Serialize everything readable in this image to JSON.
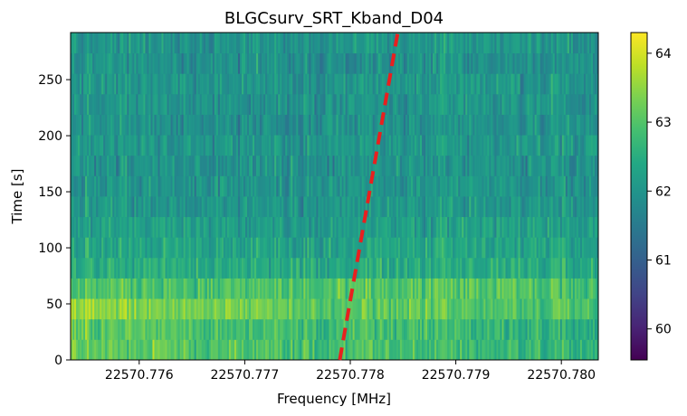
{
  "chart_data": {
    "type": "heatmap",
    "title": "BLGCsurv_SRT_Kband_D04",
    "xlabel": "Frequency [MHz]",
    "ylabel": "Time [s]",
    "xlim": [
      22570.77535,
      22570.78035
    ],
    "ylim": [
      0,
      292
    ],
    "xticks": [
      {
        "value": 22570.776,
        "label": "22570.776"
      },
      {
        "value": 22570.777,
        "label": "22570.777"
      },
      {
        "value": 22570.778,
        "label": "22570.778"
      },
      {
        "value": 22570.779,
        "label": "22570.779"
      },
      {
        "value": 22570.78,
        "label": "22570.780"
      }
    ],
    "yticks": [
      {
        "value": 0,
        "label": "0"
      },
      {
        "value": 50,
        "label": "50"
      },
      {
        "value": 100,
        "label": "100"
      },
      {
        "value": 150,
        "label": "150"
      },
      {
        "value": 200,
        "label": "200"
      },
      {
        "value": 250,
        "label": "250"
      }
    ],
    "colormap": "viridis",
    "colorbar": {
      "range": [
        59.55,
        64.3
      ],
      "ticks": [
        {
          "value": 60,
          "label": "60"
        },
        {
          "value": 61,
          "label": "61"
        },
        {
          "value": 62,
          "label": "62"
        },
        {
          "value": 63,
          "label": "63"
        },
        {
          "value": 64,
          "label": "64"
        }
      ]
    },
    "time_bins": 16,
    "freq_bins": 290,
    "row_mean_levels": [
      62.85,
      62.8,
      63.15,
      62.95,
      62.45,
      62.3,
      62.2,
      62.05,
      62.0,
      61.95,
      62.05,
      61.95,
      62.0,
      62.05,
      61.95,
      62.0
    ],
    "drift_line": {
      "color": "#e8201f",
      "style": "dashed",
      "points": [
        [
          22570.7779,
          0
        ],
        [
          22570.77845,
          292
        ]
      ]
    },
    "grid": false
  }
}
